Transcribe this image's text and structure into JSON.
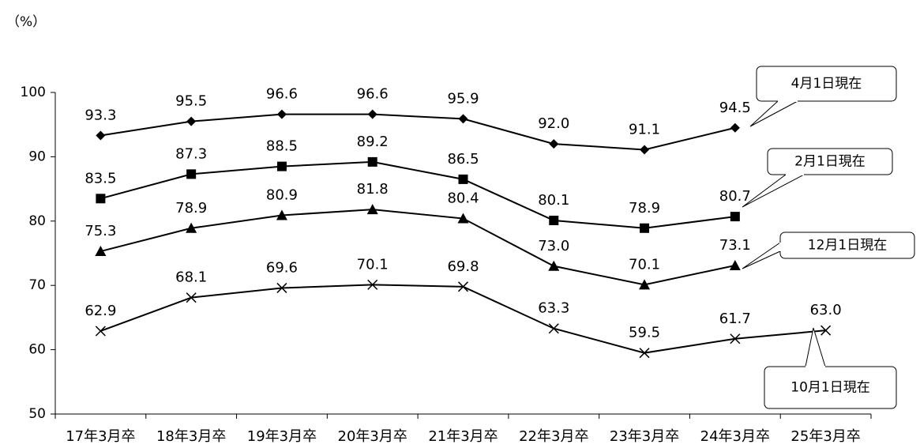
{
  "chart_data": {
    "type": "line",
    "y_label": "（%）",
    "categories": [
      "17年3月卒",
      "18年3月卒",
      "19年3月卒",
      "20年3月卒",
      "21年3月卒",
      "22年3月卒",
      "23年3月卒",
      "24年3月卒",
      "25年3月卒"
    ],
    "series": [
      {
        "name": "4月1日現在",
        "color": "#000000",
        "marker": "diamond",
        "values": [
          93.3,
          95.5,
          96.6,
          96.6,
          95.9,
          92.0,
          91.1,
          94.5,
          null
        ],
        "value_labels": [
          "93.3",
          "95.5",
          "96.6",
          "96.6",
          "95.9",
          "92.0",
          "91.1",
          "94.5",
          null
        ]
      },
      {
        "name": "2月1日現在",
        "color": "#000000",
        "marker": "square",
        "values": [
          83.5,
          87.3,
          88.5,
          89.2,
          86.5,
          80.1,
          78.9,
          80.7,
          null
        ],
        "value_labels": [
          "83.5",
          "87.3",
          "88.5",
          "89.2",
          "86.5",
          "80.1",
          "78.9",
          "80.7",
          null
        ]
      },
      {
        "name": "12月1日現在",
        "color": "#000000",
        "marker": "triangle",
        "values": [
          75.3,
          78.9,
          80.9,
          81.8,
          80.4,
          73.0,
          70.1,
          73.1,
          null
        ],
        "value_labels": [
          "75.3",
          "78.9",
          "80.9",
          "81.8",
          "80.4",
          "73.0",
          "70.1",
          "73.1",
          null
        ]
      },
      {
        "name": "10月1日現在",
        "color": "#000000",
        "marker": "x",
        "values": [
          62.9,
          68.1,
          69.6,
          70.1,
          69.8,
          63.3,
          59.5,
          61.7,
          63.0
        ],
        "value_labels": [
          "62.9",
          "68.1",
          "69.6",
          "70.1",
          "69.8",
          "63.3",
          "59.5",
          "61.7",
          "63.0"
        ]
      }
    ],
    "ylim": [
      50,
      100
    ],
    "yticks": [
      50,
      60,
      70,
      80,
      90,
      100
    ],
    "grid": false
  }
}
